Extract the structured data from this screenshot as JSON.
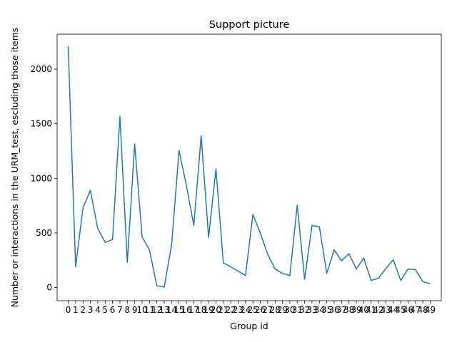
{
  "chart_data": {
    "type": "line",
    "title": "Support picture",
    "xlabel": "Group id",
    "ylabel": "Number or interactions in the URM_test, escluding those items",
    "x": [
      0,
      1,
      2,
      3,
      4,
      5,
      6,
      7,
      8,
      9,
      10,
      11,
      12,
      13,
      14,
      15,
      16,
      17,
      18,
      19,
      20,
      21,
      22,
      23,
      24,
      25,
      26,
      27,
      28,
      29,
      30,
      31,
      32,
      33,
      34,
      35,
      36,
      37,
      38,
      39,
      40,
      41,
      42,
      43,
      44,
      45,
      46,
      47,
      48,
      49
    ],
    "x_tick_labels": [
      "0",
      "1",
      "2",
      "3",
      "4",
      "5",
      "6",
      "7",
      "8",
      "9",
      "10",
      "11",
      "12",
      "13",
      "14",
      "15",
      "16",
      "17",
      "18",
      "19",
      "20",
      "21",
      "22",
      "23",
      "24",
      "25",
      "26",
      "27",
      "28",
      "29",
      "30",
      "31",
      "32",
      "33",
      "34",
      "35",
      "36",
      "37",
      "38",
      "39",
      "40",
      "41",
      "42",
      "43",
      "44",
      "45",
      "46",
      "47",
      "48",
      "49"
    ],
    "series": [
      {
        "values": [
          2210,
          190,
          730,
          890,
          540,
          415,
          440,
          1570,
          230,
          1315,
          465,
          345,
          15,
          5,
          395,
          1255,
          935,
          570,
          1390,
          460,
          1085,
          225,
          190,
          150,
          110,
          670,
          500,
          305,
          170,
          130,
          110,
          755,
          75,
          570,
          555,
          130,
          345,
          245,
          310,
          170,
          270,
          65,
          85,
          175,
          255,
          65,
          170,
          165,
          55,
          35
        ]
      }
    ],
    "y_ticks": [
      0,
      500,
      1000,
      1500,
      2000
    ],
    "xlim": [
      -1.5,
      50.5
    ],
    "ylim": [
      -120,
      2320
    ],
    "grid": false,
    "legend": "none",
    "line_color": "#1f77b4"
  }
}
